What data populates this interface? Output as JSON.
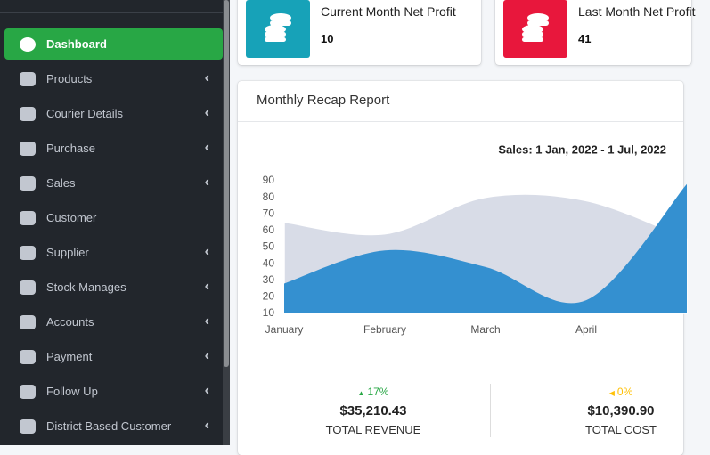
{
  "sidebar": {
    "items": [
      {
        "label": "Dashboard",
        "active": true,
        "has_submenu": false
      },
      {
        "label": "Products",
        "active": false,
        "has_submenu": true
      },
      {
        "label": "Courier Details",
        "active": false,
        "has_submenu": true
      },
      {
        "label": "Purchase",
        "active": false,
        "has_submenu": true
      },
      {
        "label": "Sales",
        "active": false,
        "has_submenu": true
      },
      {
        "label": "Customer",
        "active": false,
        "has_submenu": false
      },
      {
        "label": "Supplier",
        "active": false,
        "has_submenu": true
      },
      {
        "label": "Stock Manages",
        "active": false,
        "has_submenu": true
      },
      {
        "label": "Accounts",
        "active": false,
        "has_submenu": true
      },
      {
        "label": "Payment",
        "active": false,
        "has_submenu": true
      },
      {
        "label": "Follow Up",
        "active": false,
        "has_submenu": true
      },
      {
        "label": "District Based Customer",
        "active": false,
        "has_submenu": true
      }
    ]
  },
  "cards": [
    {
      "label": "Current Month Net Profit",
      "value": "10",
      "color": "#17a2b8"
    },
    {
      "label": "Last Month Net Profit",
      "value": "41",
      "color": "#e8173c"
    }
  ],
  "panel": {
    "title": "Monthly Recap Report"
  },
  "chart_data": {
    "type": "area",
    "title": "Sales: 1 Jan, 2022 - 1 Jul, 2022",
    "categories": [
      "January",
      "February",
      "March",
      "April",
      null
    ],
    "series": [
      {
        "color": "#d8dce7",
        "values": [
          65,
          58,
          80,
          78,
          55
        ]
      },
      {
        "color": "#3490d0",
        "values": [
          28,
          48,
          38,
          18,
          88
        ]
      }
    ],
    "ylim": [
      10,
      90
    ],
    "yticks": [
      10,
      20,
      30,
      40,
      50,
      60,
      70,
      80,
      90
    ],
    "grid": false
  },
  "stats": [
    {
      "change": "17%",
      "direction": "up",
      "color": "#28a745",
      "amount": "$35,210.43",
      "label": "TOTAL REVENUE"
    },
    {
      "change": "0%",
      "direction": "left",
      "color": "#ffc107",
      "amount": "$10,390.90",
      "label": "TOTAL COST"
    }
  ]
}
